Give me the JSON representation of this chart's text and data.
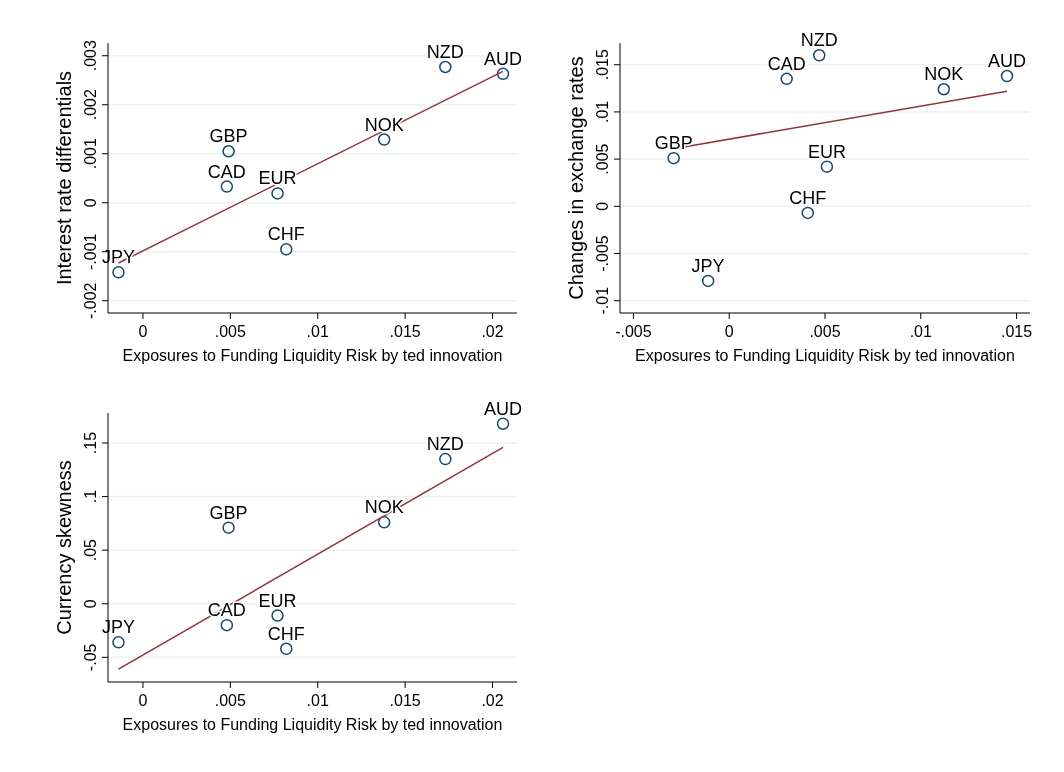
{
  "chart_data": [
    {
      "type": "scatter",
      "xlabel": "Exposures to Funding Liquidity Risk by ted innovation",
      "ylabel": "Interest rate differentials",
      "xlim": [
        -0.002,
        0.0214
      ],
      "ylim": [
        -0.00225,
        0.00326
      ],
      "xticks": [
        {
          "value": 0,
          "label": "0"
        },
        {
          "value": 0.005,
          "label": ".005"
        },
        {
          "value": 0.01,
          "label": ".01"
        },
        {
          "value": 0.015,
          "label": ".015"
        },
        {
          "value": 0.02,
          "label": ".02"
        }
      ],
      "yticks": [
        {
          "value": -0.002,
          "label": "-.002"
        },
        {
          "value": -0.001,
          "label": "-.001"
        },
        {
          "value": 0,
          "label": "0"
        },
        {
          "value": 0.001,
          "label": ".001"
        },
        {
          "value": 0.002,
          "label": ".002"
        },
        {
          "value": 0.003,
          "label": ".003"
        }
      ],
      "grid": "y",
      "series": [
        {
          "marker": "circle",
          "color": "#1a476f",
          "x": [
            -0.0014,
            0.0049,
            0.0048,
            0.0077,
            0.0082,
            0.0138,
            0.0173,
            0.0206
          ],
          "values": [
            -0.00142,
            0.00105,
            0.00033,
            0.00019,
            -0.00095,
            0.00129,
            0.00277,
            0.00263
          ]
        },
        {
          "type": "line",
          "color": "#90353b",
          "x": [
            -0.0014,
            0.0206
          ],
          "values": [
            -0.00123,
            0.00268
          ]
        }
      ],
      "annotations": [
        {
          "text": "JPY",
          "x": -0.0014,
          "y": -0.00142
        },
        {
          "text": "GBP",
          "x": 0.0049,
          "y": 0.00105
        },
        {
          "text": "CAD",
          "x": 0.0048,
          "y": 0.00033
        },
        {
          "text": "EUR",
          "x": 0.0077,
          "y": 0.00019
        },
        {
          "text": "CHF",
          "x": 0.0082,
          "y": -0.00095
        },
        {
          "text": "NOK",
          "x": 0.0138,
          "y": 0.00129
        },
        {
          "text": "NZD",
          "x": 0.0173,
          "y": 0.00277
        },
        {
          "text": "AUD",
          "x": 0.0206,
          "y": 0.00263
        }
      ]
    },
    {
      "type": "scatter",
      "xlabel": "Exposures to Funding Liquidity Risk by ted innovation",
      "ylabel": "Changes in exchange rates",
      "xlim": [
        -0.0057,
        0.0157
      ],
      "ylim": [
        -0.0113,
        0.0173
      ],
      "xticks": [
        {
          "value": -0.005,
          "label": "-.005"
        },
        {
          "value": 0,
          "label": "0"
        },
        {
          "value": 0.005,
          "label": ".005"
        },
        {
          "value": 0.01,
          "label": ".01"
        },
        {
          "value": 0.015,
          "label": ".015"
        }
      ],
      "yticks": [
        {
          "value": -0.01,
          "label": "-.01"
        },
        {
          "value": -0.005,
          "label": "-.005"
        },
        {
          "value": 0,
          "label": "0"
        },
        {
          "value": 0.005,
          "label": ".005"
        },
        {
          "value": 0.01,
          "label": ".01"
        },
        {
          "value": 0.015,
          "label": ".015"
        }
      ],
      "grid": "y",
      "series": [
        {
          "marker": "circle",
          "color": "#1a476f",
          "x": [
            -0.0029,
            -0.0011,
            0.003,
            0.0047,
            0.0051,
            0.0041,
            0.0112,
            0.0145
          ],
          "values": [
            0.0051,
            -0.0079,
            0.0135,
            0.016,
            0.0042,
            -0.0007,
            0.0124,
            0.0138
          ]
        },
        {
          "type": "line",
          "color": "#90353b",
          "x": [
            -0.0029,
            0.0145
          ],
          "values": [
            0.0061,
            0.0122
          ]
        }
      ],
      "annotations": [
        {
          "text": "GBP",
          "x": -0.0029,
          "y": 0.0051
        },
        {
          "text": "JPY",
          "x": -0.0011,
          "y": -0.0079
        },
        {
          "text": "CAD",
          "x": 0.003,
          "y": 0.0135
        },
        {
          "text": "NZD",
          "x": 0.0047,
          "y": 0.016
        },
        {
          "text": "EUR",
          "x": 0.0051,
          "y": 0.0042
        },
        {
          "text": "CHF",
          "x": 0.0041,
          "y": -0.0007
        },
        {
          "text": "NOK",
          "x": 0.0112,
          "y": 0.0124
        },
        {
          "text": "AUD",
          "x": 0.0145,
          "y": 0.0138
        }
      ]
    },
    {
      "type": "scatter",
      "xlabel": "Exposures to Funding Liquidity Risk by ted innovation",
      "ylabel": "Currency skewness",
      "xlim": [
        -0.002,
        0.0214
      ],
      "ylim": [
        -0.073,
        0.178
      ],
      "xticks": [
        {
          "value": 0,
          "label": "0"
        },
        {
          "value": 0.005,
          "label": ".005"
        },
        {
          "value": 0.01,
          "label": ".01"
        },
        {
          "value": 0.015,
          "label": ".015"
        },
        {
          "value": 0.02,
          "label": ".02"
        }
      ],
      "yticks": [
        {
          "value": -0.05,
          "label": "-.05"
        },
        {
          "value": 0,
          "label": "0"
        },
        {
          "value": 0.05,
          "label": ".05"
        },
        {
          "value": 0.1,
          "label": ".1"
        },
        {
          "value": 0.15,
          "label": ".15"
        }
      ],
      "grid": "y",
      "series": [
        {
          "marker": "circle",
          "color": "#1a476f",
          "x": [
            -0.0014,
            0.0049,
            0.0048,
            0.0077,
            0.0082,
            0.0138,
            0.0173,
            0.0206
          ],
          "values": [
            -0.036,
            0.071,
            -0.02,
            -0.011,
            -0.042,
            0.076,
            0.135,
            0.168
          ]
        },
        {
          "type": "line",
          "color": "#90353b",
          "x": [
            -0.0014,
            0.0206
          ],
          "values": [
            -0.061,
            0.146
          ]
        }
      ],
      "annotations": [
        {
          "text": "JPY",
          "x": -0.0014,
          "y": -0.036
        },
        {
          "text": "GBP",
          "x": 0.0049,
          "y": 0.071
        },
        {
          "text": "CAD",
          "x": 0.0048,
          "y": -0.02
        },
        {
          "text": "EUR",
          "x": 0.0077,
          "y": -0.011
        },
        {
          "text": "CHF",
          "x": 0.0082,
          "y": -0.042
        },
        {
          "text": "NOK",
          "x": 0.0138,
          "y": 0.076
        },
        {
          "text": "NZD",
          "x": 0.0173,
          "y": 0.135
        },
        {
          "text": "AUD",
          "x": 0.0206,
          "y": 0.168
        }
      ]
    }
  ]
}
